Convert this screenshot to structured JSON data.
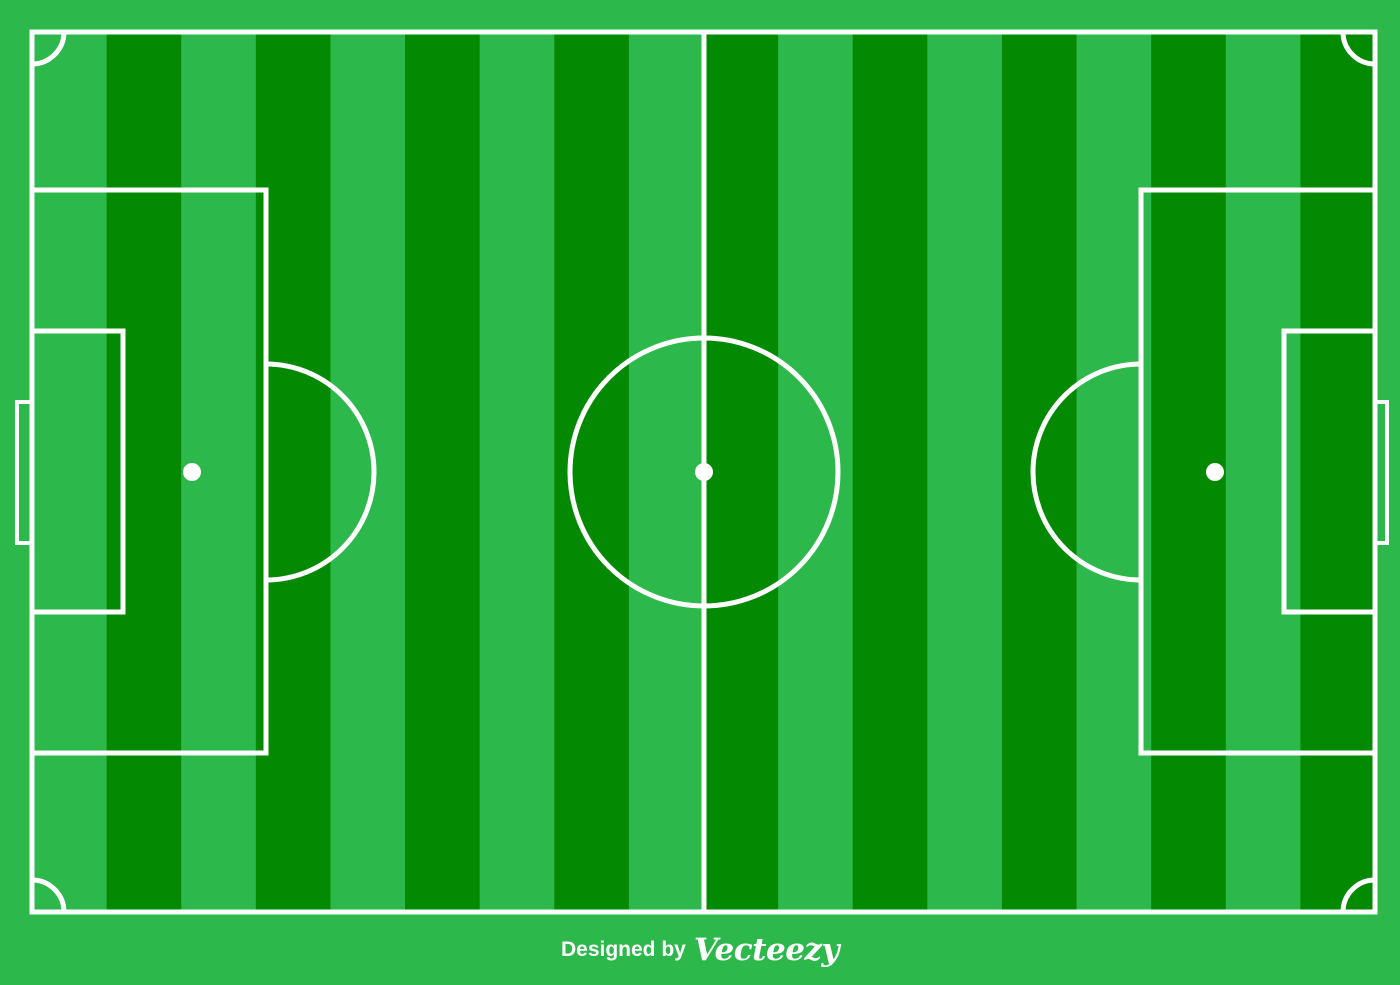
{
  "pitch": {
    "colors": {
      "background": "#2db84b",
      "stripe_light": "#2db84b",
      "stripe_dark": "#038a02",
      "lines": "#ffffff"
    },
    "stripe_count": 18
  },
  "credit": {
    "prefix": "Designed by",
    "brand": "Vecteezy"
  }
}
